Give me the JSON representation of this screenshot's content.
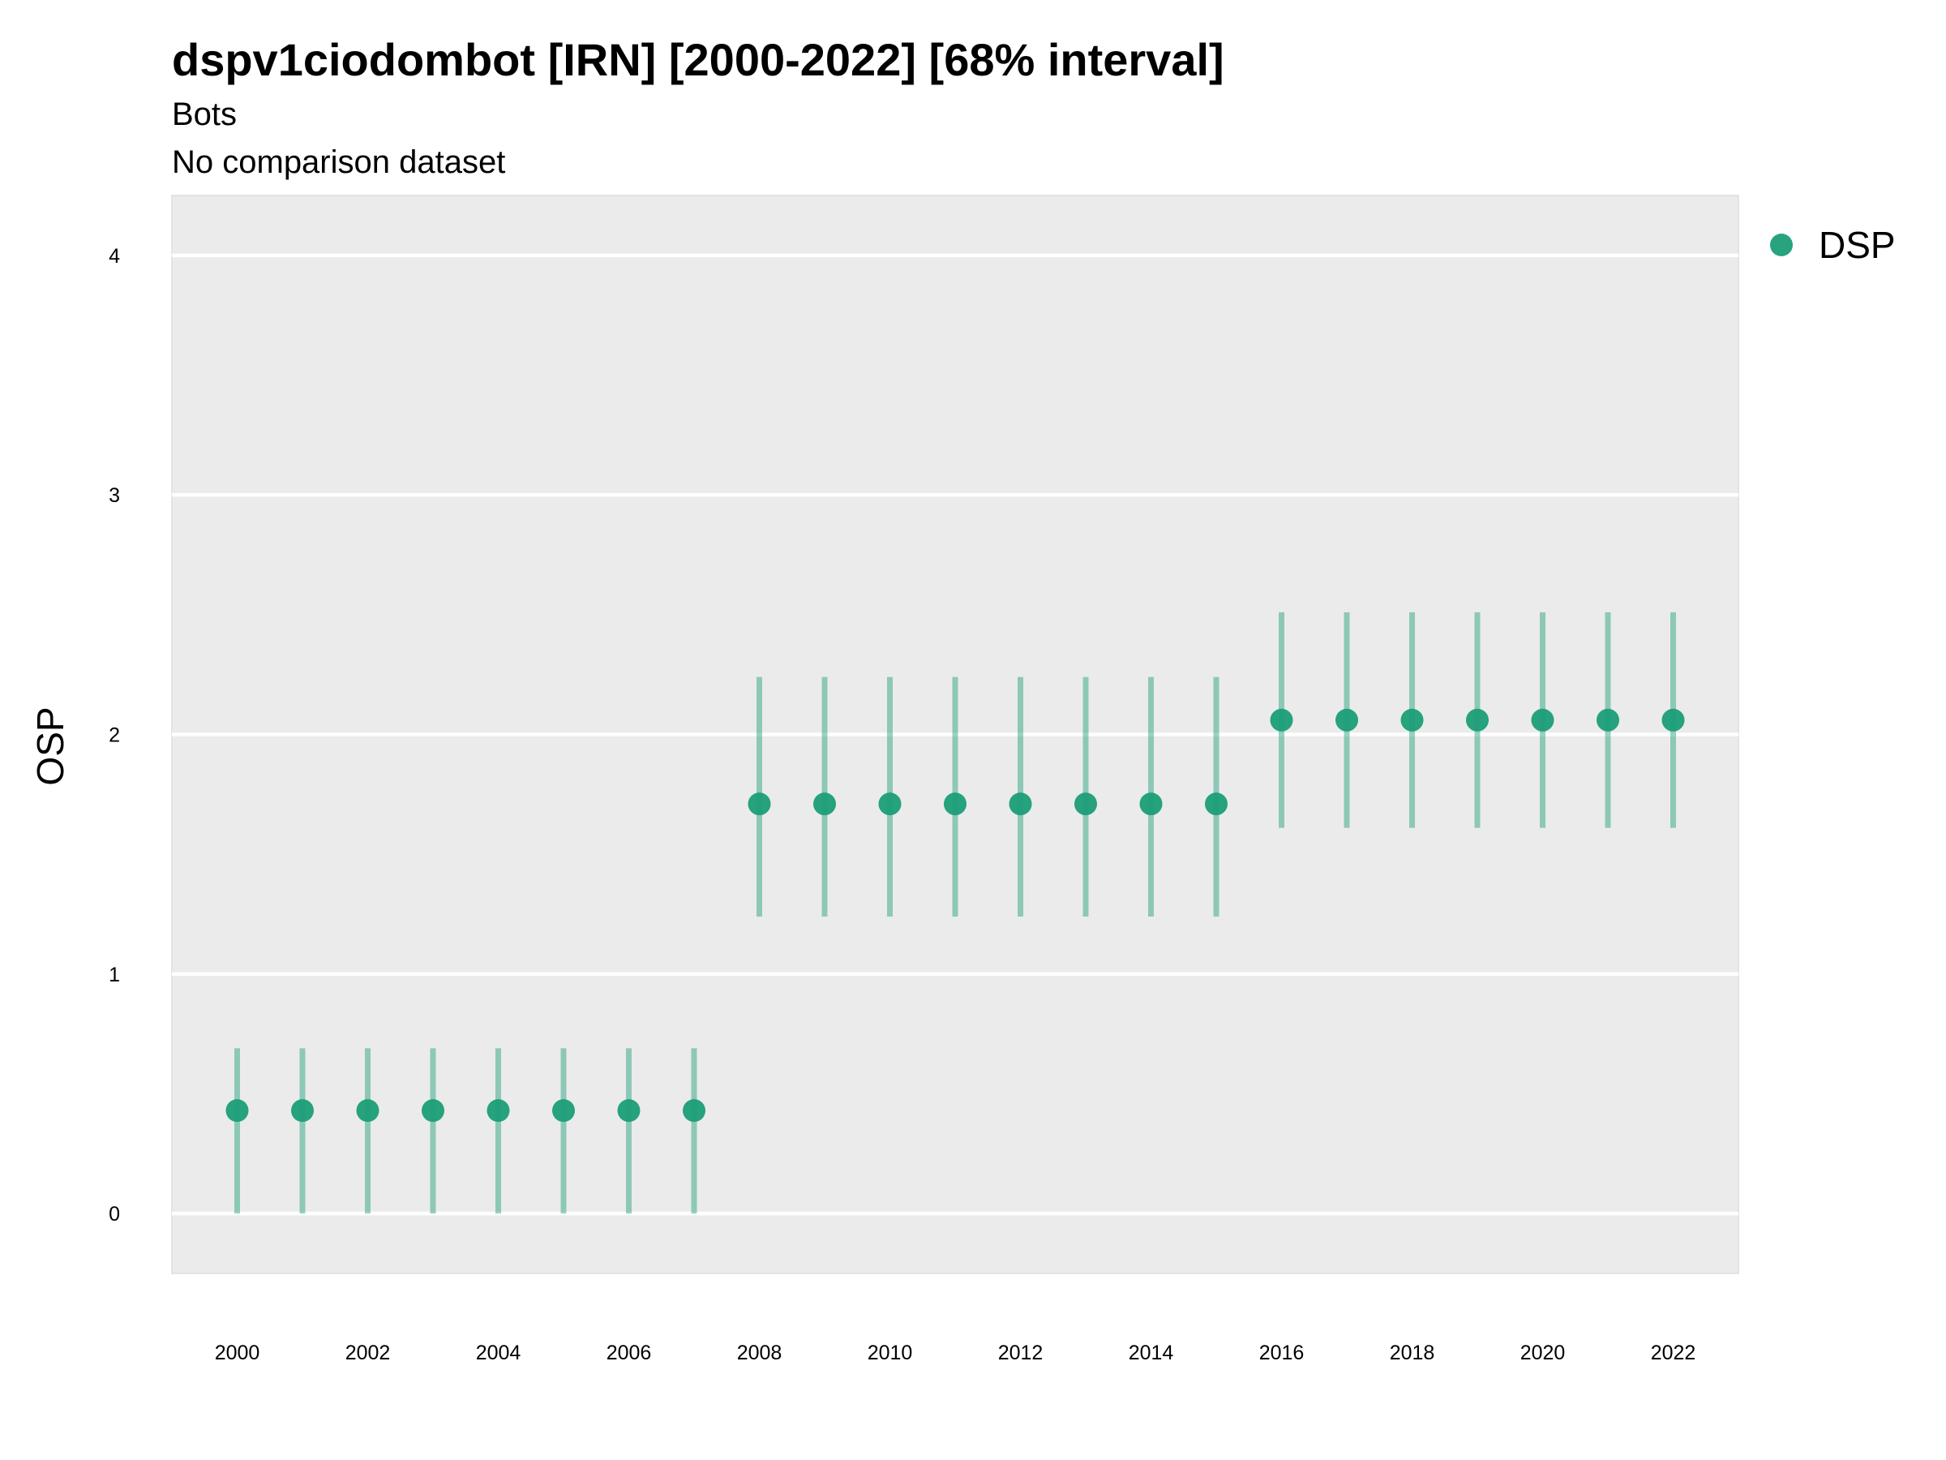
{
  "chart_data": {
    "type": "scatter",
    "title": "dspv1ciodombot [IRN] [2000-2022] [68% interval]",
    "subtitle_lines": [
      "Bots",
      "No comparison dataset"
    ],
    "xlabel": "",
    "ylabel": "OSP",
    "ylim": [
      -0.25,
      4.25
    ],
    "xlim": [
      1999.0,
      2023.0
    ],
    "y_ticks": [
      0,
      1,
      2,
      3,
      4
    ],
    "x_ticks": [
      2000,
      2002,
      2004,
      2006,
      2008,
      2010,
      2012,
      2014,
      2016,
      2018,
      2020,
      2022
    ],
    "grid": true,
    "legend_position": "right",
    "series": [
      {
        "name": "DSP",
        "color": "#1b9e77",
        "x": [
          2000,
          2001,
          2002,
          2003,
          2004,
          2005,
          2006,
          2007,
          2008,
          2009,
          2010,
          2011,
          2012,
          2013,
          2014,
          2015,
          2016,
          2017,
          2018,
          2019,
          2020,
          2021,
          2022
        ],
        "y": [
          0.43,
          0.43,
          0.43,
          0.43,
          0.43,
          0.43,
          0.43,
          0.43,
          1.71,
          1.71,
          1.71,
          1.71,
          1.71,
          1.71,
          1.71,
          1.71,
          2.06,
          2.06,
          2.06,
          2.06,
          2.06,
          2.06,
          2.06
        ],
        "lower": [
          0.0,
          0.0,
          0.0,
          0.0,
          0.0,
          0.0,
          0.0,
          0.0,
          1.24,
          1.24,
          1.24,
          1.24,
          1.24,
          1.24,
          1.24,
          1.24,
          1.61,
          1.61,
          1.61,
          1.61,
          1.61,
          1.61,
          1.61
        ],
        "upper": [
          0.69,
          0.69,
          0.69,
          0.69,
          0.69,
          0.69,
          0.69,
          0.69,
          2.24,
          2.24,
          2.24,
          2.24,
          2.24,
          2.24,
          2.24,
          2.24,
          2.51,
          2.51,
          2.51,
          2.51,
          2.51,
          2.51,
          2.51
        ]
      }
    ]
  }
}
